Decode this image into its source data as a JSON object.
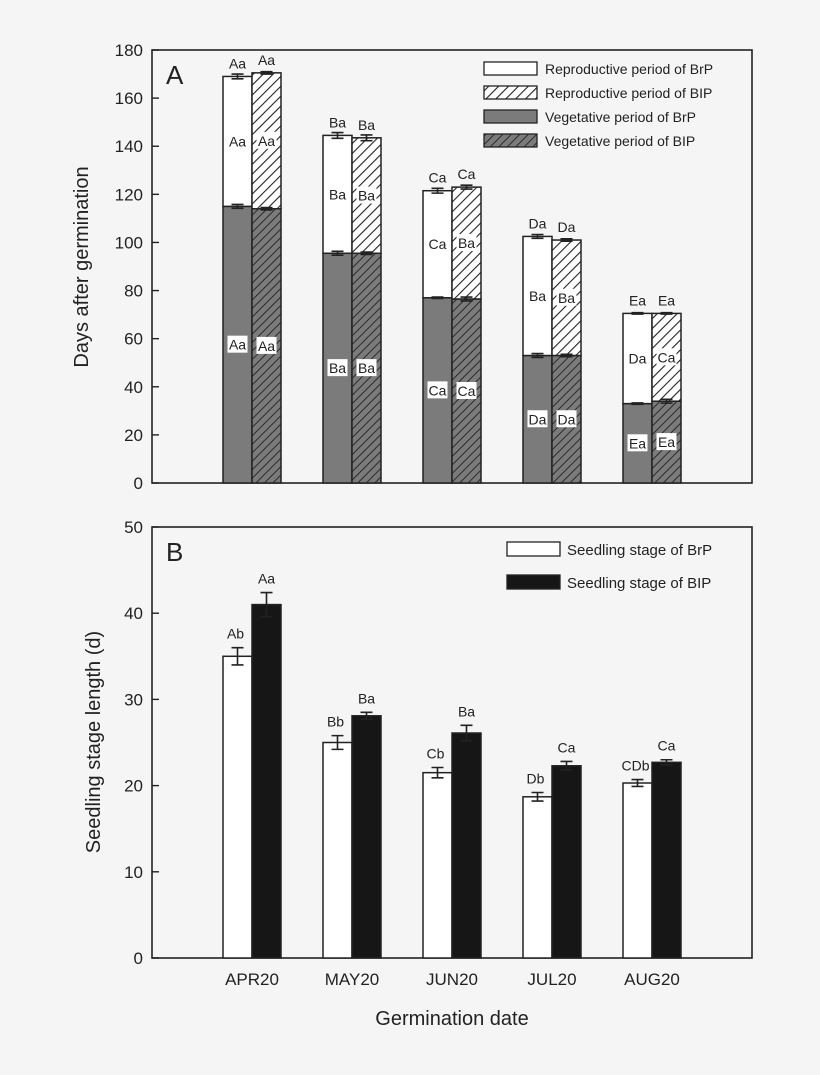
{
  "colors": {
    "background": "#f5f5f5",
    "vegetative_gray": "#7b7b7b",
    "bip_black": "#161616",
    "axis": "#222222"
  },
  "chart_data": [
    {
      "type": "bar",
      "stacked": true,
      "panel_label": "A",
      "xlabel": "",
      "ylabel": "Days after germination",
      "ylim": [
        0,
        180
      ],
      "yticks": [
        0,
        20,
        40,
        60,
        80,
        100,
        120,
        140,
        160,
        180
      ],
      "grid": false,
      "legend_position": "top-right",
      "categories": [
        "APR20",
        "MAY20",
        "JUN20",
        "JUL20",
        "AUG20"
      ],
      "legend": [
        {
          "label": "Reproductive period of BrP",
          "style": "white"
        },
        {
          "label": "Reproductive period of BIP",
          "style": "hatch-white"
        },
        {
          "label": "Vegetative period of BrP",
          "style": "gray"
        },
        {
          "label": "Vegetative period of BIP",
          "style": "hatch-gray"
        }
      ],
      "series": [
        {
          "name": "BrP",
          "vegetative": [
            115,
            95.5,
            77,
            53,
            33
          ],
          "vegetative_err": [
            0.8,
            0.8,
            0.3,
            0.8,
            0.3
          ],
          "reproductive": [
            54,
            49,
            44.5,
            49.5,
            37.5
          ],
          "total_err": [
            1,
            1.2,
            1,
            0.8,
            0.3
          ],
          "top_labels": [
            "Aa",
            "Ba",
            "Ca",
            "Da",
            "Ea"
          ],
          "reproductive_labels": [
            "Aa",
            "Ba",
            "Ca",
            "Ba",
            "Da"
          ],
          "vegetative_labels": [
            "Aa",
            "Ba",
            "Ca",
            "Da",
            "Ea"
          ]
        },
        {
          "name": "BIP",
          "vegetative": [
            114,
            95.5,
            76.5,
            53,
            34
          ],
          "vegetative_err": [
            0.5,
            0.5,
            0.8,
            0.5,
            0.8
          ],
          "reproductive": [
            56.5,
            48,
            46.5,
            48,
            36.5
          ],
          "total_err": [
            0.5,
            1.2,
            0.8,
            0.5,
            0.3
          ],
          "top_labels": [
            "Aa",
            "Ba",
            "Ca",
            "Da",
            "Ea"
          ],
          "reproductive_labels": [
            "Aa",
            "Ba",
            "Ba",
            "Ba",
            "Ca"
          ],
          "vegetative_labels": [
            "Aa",
            "Ba",
            "Ca",
            "Da",
            "Ea"
          ]
        }
      ]
    },
    {
      "type": "bar",
      "panel_label": "B",
      "xlabel": "Germination date",
      "ylabel": "Seedling stage length (d)",
      "ylim": [
        0,
        50
      ],
      "yticks": [
        0,
        10,
        20,
        30,
        40,
        50
      ],
      "grid": false,
      "legend_position": "top-right",
      "categories": [
        "APR20",
        "MAY20",
        "JUN20",
        "JUL20",
        "AUG20"
      ],
      "series": [
        {
          "name": "Seedling stage of BrP",
          "style": "white",
          "values": [
            35,
            25,
            21.5,
            18.7,
            20.3
          ],
          "err": [
            1,
            0.8,
            0.6,
            0.5,
            0.4
          ],
          "labels": [
            "Ab",
            "Bb",
            "Cb",
            "Db",
            "CDb"
          ]
        },
        {
          "name": "Seedling stage of BIP",
          "style": "black",
          "values": [
            41,
            28.1,
            26.1,
            22.3,
            22.7
          ],
          "err": [
            1.4,
            0.4,
            0.9,
            0.5,
            0.3
          ],
          "labels": [
            "Aa",
            "Ba",
            "Ba",
            "Ca",
            "Ca"
          ]
        }
      ]
    }
  ]
}
